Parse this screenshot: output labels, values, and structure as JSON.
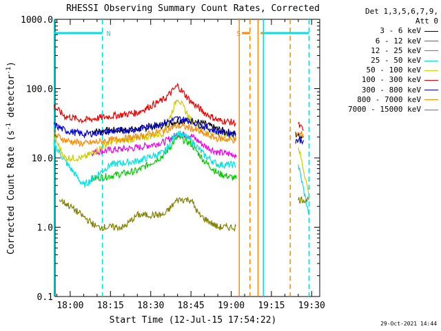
{
  "chart_data": {
    "type": "line",
    "title": "RHESSI Observing Summary Count Rates, Corrected",
    "xlabel": "Start Time (12-Jul-15 17:54:22)",
    "ylabel_main": "Corrected Count Rate (s",
    "ylabel_sup1": "-1",
    "ylabel_mid": " detector",
    "ylabel_sup2": "-1",
    "ylabel_end": ")",
    "y_scale": "log",
    "ylim": [
      0.1,
      1000
    ],
    "xlim": [
      "17:54:22",
      "19:33:00"
    ],
    "x_ticks": [
      "18:00",
      "18:15",
      "18:30",
      "18:45",
      "19:00",
      "19:15",
      "19:30"
    ],
    "y_ticks": [
      "0.1",
      "1.0",
      "10.0",
      "100.0",
      "1000.0"
    ],
    "legend_header": [
      "Det 1,3,5,6,7,9,",
      "Att 0"
    ],
    "legend_placement": "right-outside",
    "series": [
      {
        "name": "3 - 6 keV",
        "color": "#000000",
        "x": [
          "18:08",
          "18:15",
          "18:25",
          "18:35",
          "18:40",
          "18:45",
          "18:50",
          "18:55",
          "19:02",
          "19:24",
          "19:27"
        ],
        "y": [
          24,
          25,
          26,
          30,
          34,
          35,
          31,
          26,
          22,
          22,
          20
        ]
      },
      {
        "name": "6 - 12 keV",
        "color": "#ee00ee",
        "x": [
          "18:08",
          "18:15",
          "18:25",
          "18:35",
          "18:40",
          "18:45",
          "18:50",
          "18:55",
          "19:02"
        ],
        "y": [
          12,
          13,
          14,
          17,
          22,
          21,
          15,
          12,
          11
        ]
      },
      {
        "name": "12 - 25 keV",
        "color": "#00cc00",
        "x": [
          "18:08",
          "18:15",
          "18:25",
          "18:35",
          "18:40",
          "18:45",
          "18:50",
          "18:55",
          "19:02"
        ],
        "y": [
          5,
          5.5,
          6.5,
          11,
          20,
          16,
          9,
          6,
          5
        ]
      },
      {
        "name": "25 - 50 keV",
        "color": "#00e0e0",
        "x": [
          "17:54",
          "17:58",
          "18:05",
          "18:15",
          "18:25",
          "18:35",
          "18:40",
          "18:45",
          "18:50",
          "18:55",
          "19:02",
          "19:25",
          "19:29"
        ],
        "y": [
          16,
          9,
          4,
          8,
          9,
          12,
          24,
          18,
          11,
          8,
          8,
          8,
          1.5
        ]
      },
      {
        "name": "50 - 100 keV",
        "color": "#cccc00",
        "x": [
          "17:54",
          "17:58",
          "18:05",
          "18:15",
          "18:25",
          "18:35",
          "18:40",
          "18:45",
          "18:50",
          "18:55",
          "19:02",
          "19:25",
          "19:29"
        ],
        "y": [
          20,
          10,
          10,
          17,
          19,
          23,
          75,
          35,
          25,
          22,
          20,
          15,
          3
        ]
      },
      {
        "name": "100 - 300 keV",
        "color": "#ee0000",
        "x": [
          "17:54",
          "17:58",
          "18:05",
          "18:15",
          "18:25",
          "18:35",
          "18:40",
          "18:45",
          "18:50",
          "18:55",
          "19:02",
          "19:25",
          "19:27"
        ],
        "y": [
          55,
          40,
          35,
          40,
          45,
          70,
          110,
          65,
          45,
          35,
          32,
          30,
          25
        ]
      },
      {
        "name": "300 - 800 keV",
        "color": "#0000dd",
        "x": [
          "17:54",
          "17:58",
          "18:05",
          "18:15",
          "18:25",
          "18:35",
          "18:40",
          "18:45",
          "18:50",
          "18:55",
          "19:02",
          "19:24",
          "19:27"
        ],
        "y": [
          30,
          25,
          22,
          24,
          26,
          32,
          37,
          34,
          28,
          24,
          22,
          18,
          18
        ]
      },
      {
        "name": "800 - 7000 keV",
        "color": "#ff8800",
        "x": [
          "17:54",
          "17:58",
          "18:05",
          "18:15",
          "18:25",
          "18:35",
          "18:40",
          "18:45",
          "18:50",
          "18:55",
          "19:02",
          "19:24",
          "19:27"
        ],
        "y": [
          22,
          18,
          16,
          18,
          20,
          25,
          29,
          27,
          22,
          19,
          18,
          22,
          22
        ]
      },
      {
        "name": "7000 - 15000 keV",
        "color": "#808000",
        "x": [
          "17:56",
          "18:00",
          "18:10",
          "18:20",
          "18:25",
          "18:30",
          "18:35",
          "18:40",
          "18:45",
          "18:48",
          "18:55",
          "19:02",
          "19:25",
          "19:29"
        ],
        "y": [
          2.5,
          2,
          1,
          1,
          1.5,
          1.5,
          1.5,
          2.5,
          2.5,
          1.5,
          1,
          1,
          2.5,
          2.5
        ]
      }
    ],
    "flag_bars": [
      {
        "label": "N",
        "color": "#00e0e0",
        "start": "17:54",
        "end": "18:12"
      },
      {
        "label": "S",
        "color": "#ff8800",
        "start": "19:04",
        "end": "19:07"
      },
      {
        "label": "",
        "color": "#ff8800",
        "start": "19:11",
        "end": "19:22"
      },
      {
        "label": "",
        "color": "#00e0e0",
        "start": "19:12",
        "end": "19:29"
      }
    ],
    "vlines": [
      {
        "t": "17:54",
        "color": "#00e0e0",
        "style": "solid"
      },
      {
        "t": "18:12",
        "color": "#00e0e0",
        "style": "dashed"
      },
      {
        "t": "19:03",
        "color": "#ff8800",
        "style": "solid"
      },
      {
        "t": "19:07",
        "color": "#ff8800",
        "style": "dashed"
      },
      {
        "t": "19:10",
        "color": "#ff8800",
        "style": "solid"
      },
      {
        "t": "19:12",
        "color": "#00e0e0",
        "style": "solid"
      },
      {
        "t": "19:22",
        "color": "#ff8800",
        "style": "dashed"
      },
      {
        "t": "19:29",
        "color": "#00e0e0",
        "style": "dashed"
      }
    ]
  },
  "timestamp": "29-Oct-2021 14:44"
}
